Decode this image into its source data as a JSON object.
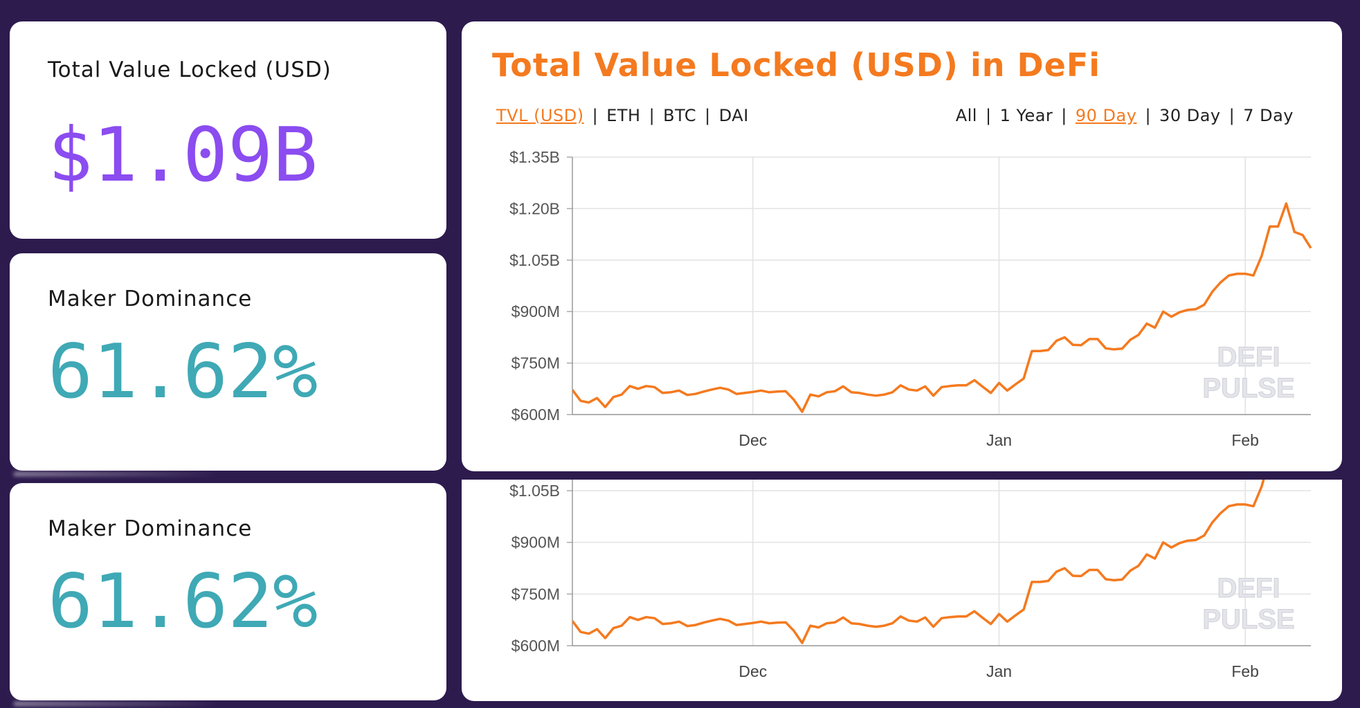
{
  "cards": {
    "tvl": {
      "label": "Total Value Locked (USD)",
      "value": "$1.09B",
      "color": "#8b4cf0"
    },
    "maker1": {
      "label": "Maker Dominance",
      "value": "61.62%",
      "color": "#3fa9b5"
    },
    "maker2": {
      "label": "Maker Dominance",
      "value": "61.62%",
      "color": "#3fa9b5"
    }
  },
  "chart_header": {
    "title": "Total Value Locked (USD) in DeFi",
    "metrics": [
      "TVL (USD)",
      "ETH",
      "BTC",
      "DAI"
    ],
    "active_metric": "TVL (USD)",
    "ranges": [
      "All",
      "1 Year",
      "90 Day",
      "30 Day",
      "7 Day"
    ],
    "active_range": "90 Day"
  },
  "watermark": [
    "DEFI",
    "PULSE"
  ],
  "colors": {
    "accent": "#f47a1f",
    "background": "#2d1b4e",
    "line": "#f47a1f"
  },
  "chart_data": [
    {
      "type": "line",
      "title": "Total Value Locked (USD) in DeFi",
      "ylabel": "",
      "xlabel": "",
      "ylim": [
        600,
        1350
      ],
      "y_unit": "USD millions",
      "yticks": [
        "$600M",
        "$750M",
        "$900M",
        "$1.05B",
        "$1.20B",
        "$1.35B"
      ],
      "ytick_values": [
        600,
        750,
        900,
        1050,
        1200,
        1350
      ],
      "xticks": [
        "Dec",
        "Jan",
        "Feb"
      ],
      "grid": true,
      "series": [
        {
          "values": [
            672,
            640,
            635,
            648,
            622,
            651,
            658,
            683,
            675,
            683,
            680,
            663,
            665,
            670,
            657,
            660,
            667,
            673,
            678,
            673,
            660,
            663,
            666,
            670,
            665,
            667,
            668,
            643,
            608,
            658,
            653,
            665,
            668,
            682,
            665,
            663,
            658,
            655,
            658,
            665,
            685,
            673,
            670,
            682,
            655,
            680,
            683,
            685,
            685,
            700,
            681,
            663,
            692,
            670,
            688,
            705,
            785,
            785,
            788,
            815,
            825,
            803,
            802,
            820,
            820,
            793,
            790,
            792,
            818,
            832,
            865,
            853,
            900,
            885,
            898,
            905,
            907,
            920,
            958,
            985,
            1005,
            1010,
            1010,
            1005,
            1062,
            1148,
            1148,
            1215,
            1132,
            1123,
            1085
          ]
        }
      ]
    },
    {
      "type": "line",
      "ylim": [
        600,
        1050
      ],
      "yticks": [
        "$600M",
        "$750M",
        "$900M",
        "$1.05B"
      ],
      "ytick_values": [
        600,
        750,
        900,
        1050
      ],
      "xticks": [
        "Dec",
        "Jan",
        "Feb"
      ],
      "grid": true,
      "same_series_as_above": true
    }
  ]
}
